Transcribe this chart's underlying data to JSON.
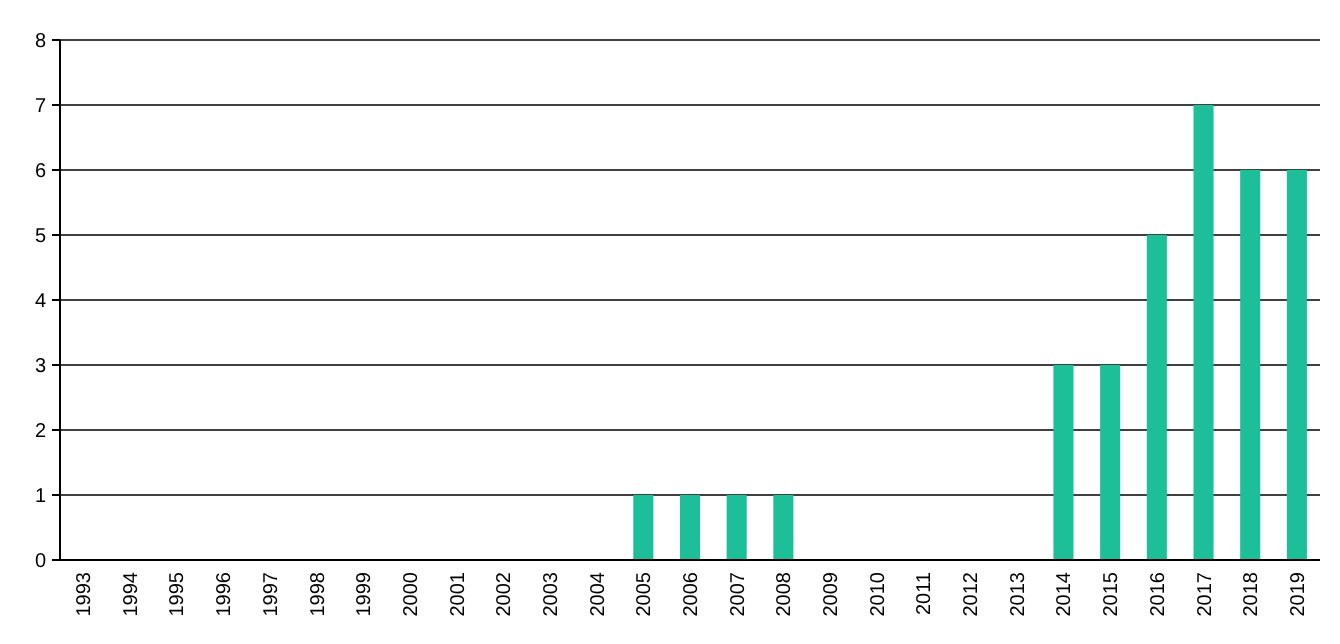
{
  "chart_data": {
    "type": "bar",
    "categories": [
      "1993",
      "1994",
      "1995",
      "1996",
      "1997",
      "1998",
      "1999",
      "2000",
      "2001",
      "2002",
      "2003",
      "2004",
      "2005",
      "2006",
      "2007",
      "2008",
      "2009",
      "2010",
      "2011",
      "2012",
      "2013",
      "2014",
      "2015",
      "2016",
      "2017",
      "2018",
      "2019"
    ],
    "values": [
      0,
      0,
      0,
      0,
      0,
      0,
      0,
      0,
      0,
      0,
      0,
      0,
      1,
      1,
      1,
      1,
      0,
      0,
      0,
      0,
      0,
      3,
      3,
      5,
      7,
      6,
      6
    ],
    "color": "#1dbf98",
    "ylim": [
      0,
      8
    ],
    "yticks": [
      0,
      1,
      2,
      3,
      4,
      5,
      6,
      7,
      8
    ],
    "grid": "y"
  }
}
